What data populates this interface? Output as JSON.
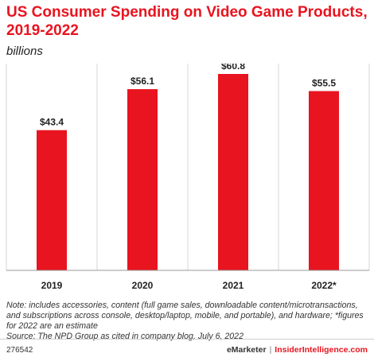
{
  "chart_data": {
    "type": "bar",
    "title": "US Consumer Spending on Video Game Products, 2019-2022",
    "subtitle": "billions",
    "categories": [
      "2019",
      "2020",
      "2021",
      "2022*"
    ],
    "values": [
      43.4,
      56.1,
      60.8,
      55.5
    ],
    "value_labels": [
      "$43.4",
      "$56.1",
      "$60.8",
      "$55.5"
    ],
    "ylim": [
      0,
      64
    ],
    "grid": "vertical-dividers",
    "legend": "none",
    "bar_color": "#e8141f"
  },
  "note": "Note: includes accessories, content (full game sales, downloadable content/microtransactions, and subscriptions across console, desktop/laptop, mobile, and portable), and hardware; *figures for 2022 are an estimate",
  "source": "Source: The NPD Group as cited in company blog, July 6, 2022",
  "footer": {
    "chart_id": "276542",
    "brand_emarketer": "eMarketer",
    "brand_separator": "|",
    "brand_insider": "InsiderIntelligence.com"
  }
}
